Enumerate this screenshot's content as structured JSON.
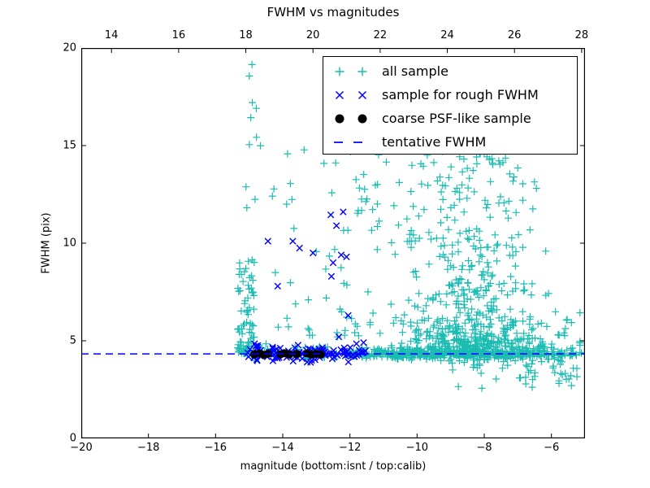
{
  "figure": {
    "title": "FWHM vs magnitudes",
    "background": "#ffffff"
  },
  "axes": {
    "xlabel": "magnitude (bottom:isnt / top:calib)",
    "ylabel": "FWHM (pix)",
    "bottom": {
      "lim": [
        -20,
        -5
      ],
      "ticks": [
        -20,
        -18,
        -16,
        -14,
        -12,
        -10,
        -8,
        -6
      ],
      "labels": [
        "−20",
        "−18",
        "−16",
        "−14",
        "−12",
        "−10",
        "−8",
        "−6"
      ]
    },
    "top": {
      "lim": [
        13.1,
        28.1
      ],
      "ticks": [
        14,
        16,
        18,
        20,
        22,
        24,
        26,
        28
      ],
      "labels": [
        "14",
        "16",
        "18",
        "20",
        "22",
        "24",
        "26",
        "28"
      ]
    },
    "left": {
      "lim": [
        0,
        20
      ],
      "ticks": [
        0,
        5,
        10,
        15,
        20
      ],
      "labels": [
        "0",
        "5",
        "10",
        "15",
        "20"
      ]
    },
    "grid": false
  },
  "colors": {
    "cyan": "#1abcb2",
    "blue": "#0000ff",
    "black": "#000000",
    "frame": "#000000"
  },
  "legend": {
    "position": "upper right",
    "entries": [
      {
        "label": "all sample",
        "marker": "plus",
        "color": "#1abcb2"
      },
      {
        "label": "sample for rough FWHM",
        "marker": "x",
        "color": "#0000ff"
      },
      {
        "label": "coarse PSF-like sample",
        "marker": "dot",
        "color": "#000000"
      },
      {
        "label": "tentative FWHM",
        "marker": "dash",
        "color": "#0000ff"
      }
    ]
  },
  "chart_data": {
    "type": "scatter",
    "title": "FWHM vs magnitudes",
    "xlabel": "magnitude (bottom:isnt / top:calib)",
    "ylabel": "FWHM (pix)",
    "xlim": [
      -20,
      -5
    ],
    "ylim": [
      0,
      20
    ],
    "reference_line": {
      "name": "tentative FWHM",
      "y": 4.33,
      "color": "#0000ff",
      "style": "dashed"
    },
    "series": [
      {
        "name": "all sample",
        "marker": "plus",
        "color": "#1abcb2",
        "clusters": [
          {
            "count": 90,
            "x": {
              "dist": "uniform",
              "min": -15.35,
              "max": -14.85
            },
            "y": {
              "dist": "uniform",
              "min": 4.35,
              "max": 9.2,
              "pow": 2.2
            }
          },
          {
            "count": 11,
            "x": {
              "dist": "uniform",
              "min": -15.15,
              "max": -14.6
            },
            "y": {
              "dist": "uniform",
              "min": 9.5,
              "max": 19.4
            }
          },
          {
            "count": 50,
            "x": {
              "dist": "uniform",
              "min": -14.6,
              "max": -11.4
            },
            "y": {
              "dist": "uniform",
              "min": 5.2,
              "max": 15.2,
              "pow": 1.6
            }
          },
          {
            "count": 45,
            "x": {
              "dist": "uniform",
              "min": -15.2,
              "max": -12.0
            },
            "y": {
              "dist": "gauss",
              "mean": 4.4,
              "sd": 0.18
            }
          },
          {
            "count": 130,
            "x": {
              "dist": "uniform",
              "min": -12.0,
              "max": -9.5
            },
            "y": {
              "dist": "gauss",
              "mean": 4.35,
              "sd": 0.15
            }
          },
          {
            "count": 110,
            "x": {
              "dist": "uniform",
              "min": -9.5,
              "max": -5.1
            },
            "y": {
              "dist": "gauss",
              "mean": 4.3,
              "sd": 0.18
            }
          },
          {
            "count": 560,
            "x": {
              "dist": "gauss",
              "mean": -8.55,
              "sd": 1.05,
              "clamp": [
                -11.4,
                -5.15
              ]
            },
            "y": {
              "dist": "uniform",
              "min": 4.3,
              "max": 15.3,
              "pow": 3.4
            }
          },
          {
            "count": 220,
            "x": {
              "dist": "gauss",
              "mean": -8.2,
              "sd": 1.5,
              "clamp": [
                -11.5,
                -5.15
              ]
            },
            "y": {
              "dist": "uniform",
              "min": 4.25,
              "max": 6.5,
              "pow": 2.5
            }
          },
          {
            "count": 55,
            "x": {
              "dist": "uniform",
              "min": -11.8,
              "max": -7.3,
              "pow": 1.3
            },
            "y": {
              "dist": "uniform",
              "min": 9.5,
              "max": 15.0
            }
          },
          {
            "count": 50,
            "x": {
              "dist": "uniform",
              "min": -9.2,
              "max": -5.15
            },
            "y": {
              "dist": "uniform",
              "min": 2.45,
              "max": 4.05,
              "pow": 0.55
            }
          },
          {
            "count": 30,
            "x": {
              "dist": "uniform",
              "min": -7.2,
              "max": -5.1
            },
            "y": {
              "dist": "uniform",
              "min": 4.2,
              "max": 6.4,
              "pow": 2
            }
          }
        ],
        "points": [
          [
            -6.85,
            12.2
          ],
          [
            -7.75,
            14.1
          ],
          [
            -6.8,
            7.6
          ],
          [
            -6.6,
            7.35
          ],
          [
            -6.3,
            5.9
          ],
          [
            -5.8,
            5.3
          ]
        ]
      },
      {
        "name": "sample for rough FWHM",
        "marker": "x",
        "color": "#0000ff",
        "clusters": [
          {
            "count": 115,
            "x": {
              "dist": "uniform",
              "min": -15.05,
              "max": -11.45
            },
            "y": {
              "dist": "gauss",
              "mean": 4.4,
              "sd": 0.2
            }
          }
        ],
        "points": [
          [
            -14.44,
            10.1
          ],
          [
            -13.7,
            10.1
          ],
          [
            -13.5,
            9.75
          ],
          [
            -13.1,
            9.5
          ],
          [
            -12.57,
            11.45
          ],
          [
            -12.2,
            11.6
          ],
          [
            -12.4,
            10.9
          ],
          [
            -12.5,
            9.0
          ],
          [
            -12.26,
            9.4
          ],
          [
            -12.1,
            9.3
          ],
          [
            -12.55,
            8.3
          ],
          [
            -12.05,
            6.3
          ],
          [
            -12.33,
            5.2
          ],
          [
            -14.15,
            7.8
          ]
        ]
      },
      {
        "name": "coarse PSF-like sample",
        "marker": "dot",
        "color": "#000000",
        "clusters": [],
        "points": [
          [
            -14.85,
            4.3
          ],
          [
            -14.7,
            4.35
          ],
          [
            -14.57,
            4.28
          ],
          [
            -14.44,
            4.33
          ],
          [
            -14.07,
            4.3
          ],
          [
            -13.94,
            4.36
          ],
          [
            -13.8,
            4.3
          ],
          [
            -13.58,
            4.32
          ],
          [
            -13.27,
            4.35
          ],
          [
            -13.15,
            4.29
          ],
          [
            -13.02,
            4.33
          ],
          [
            -12.87,
            4.3
          ]
        ]
      }
    ]
  }
}
